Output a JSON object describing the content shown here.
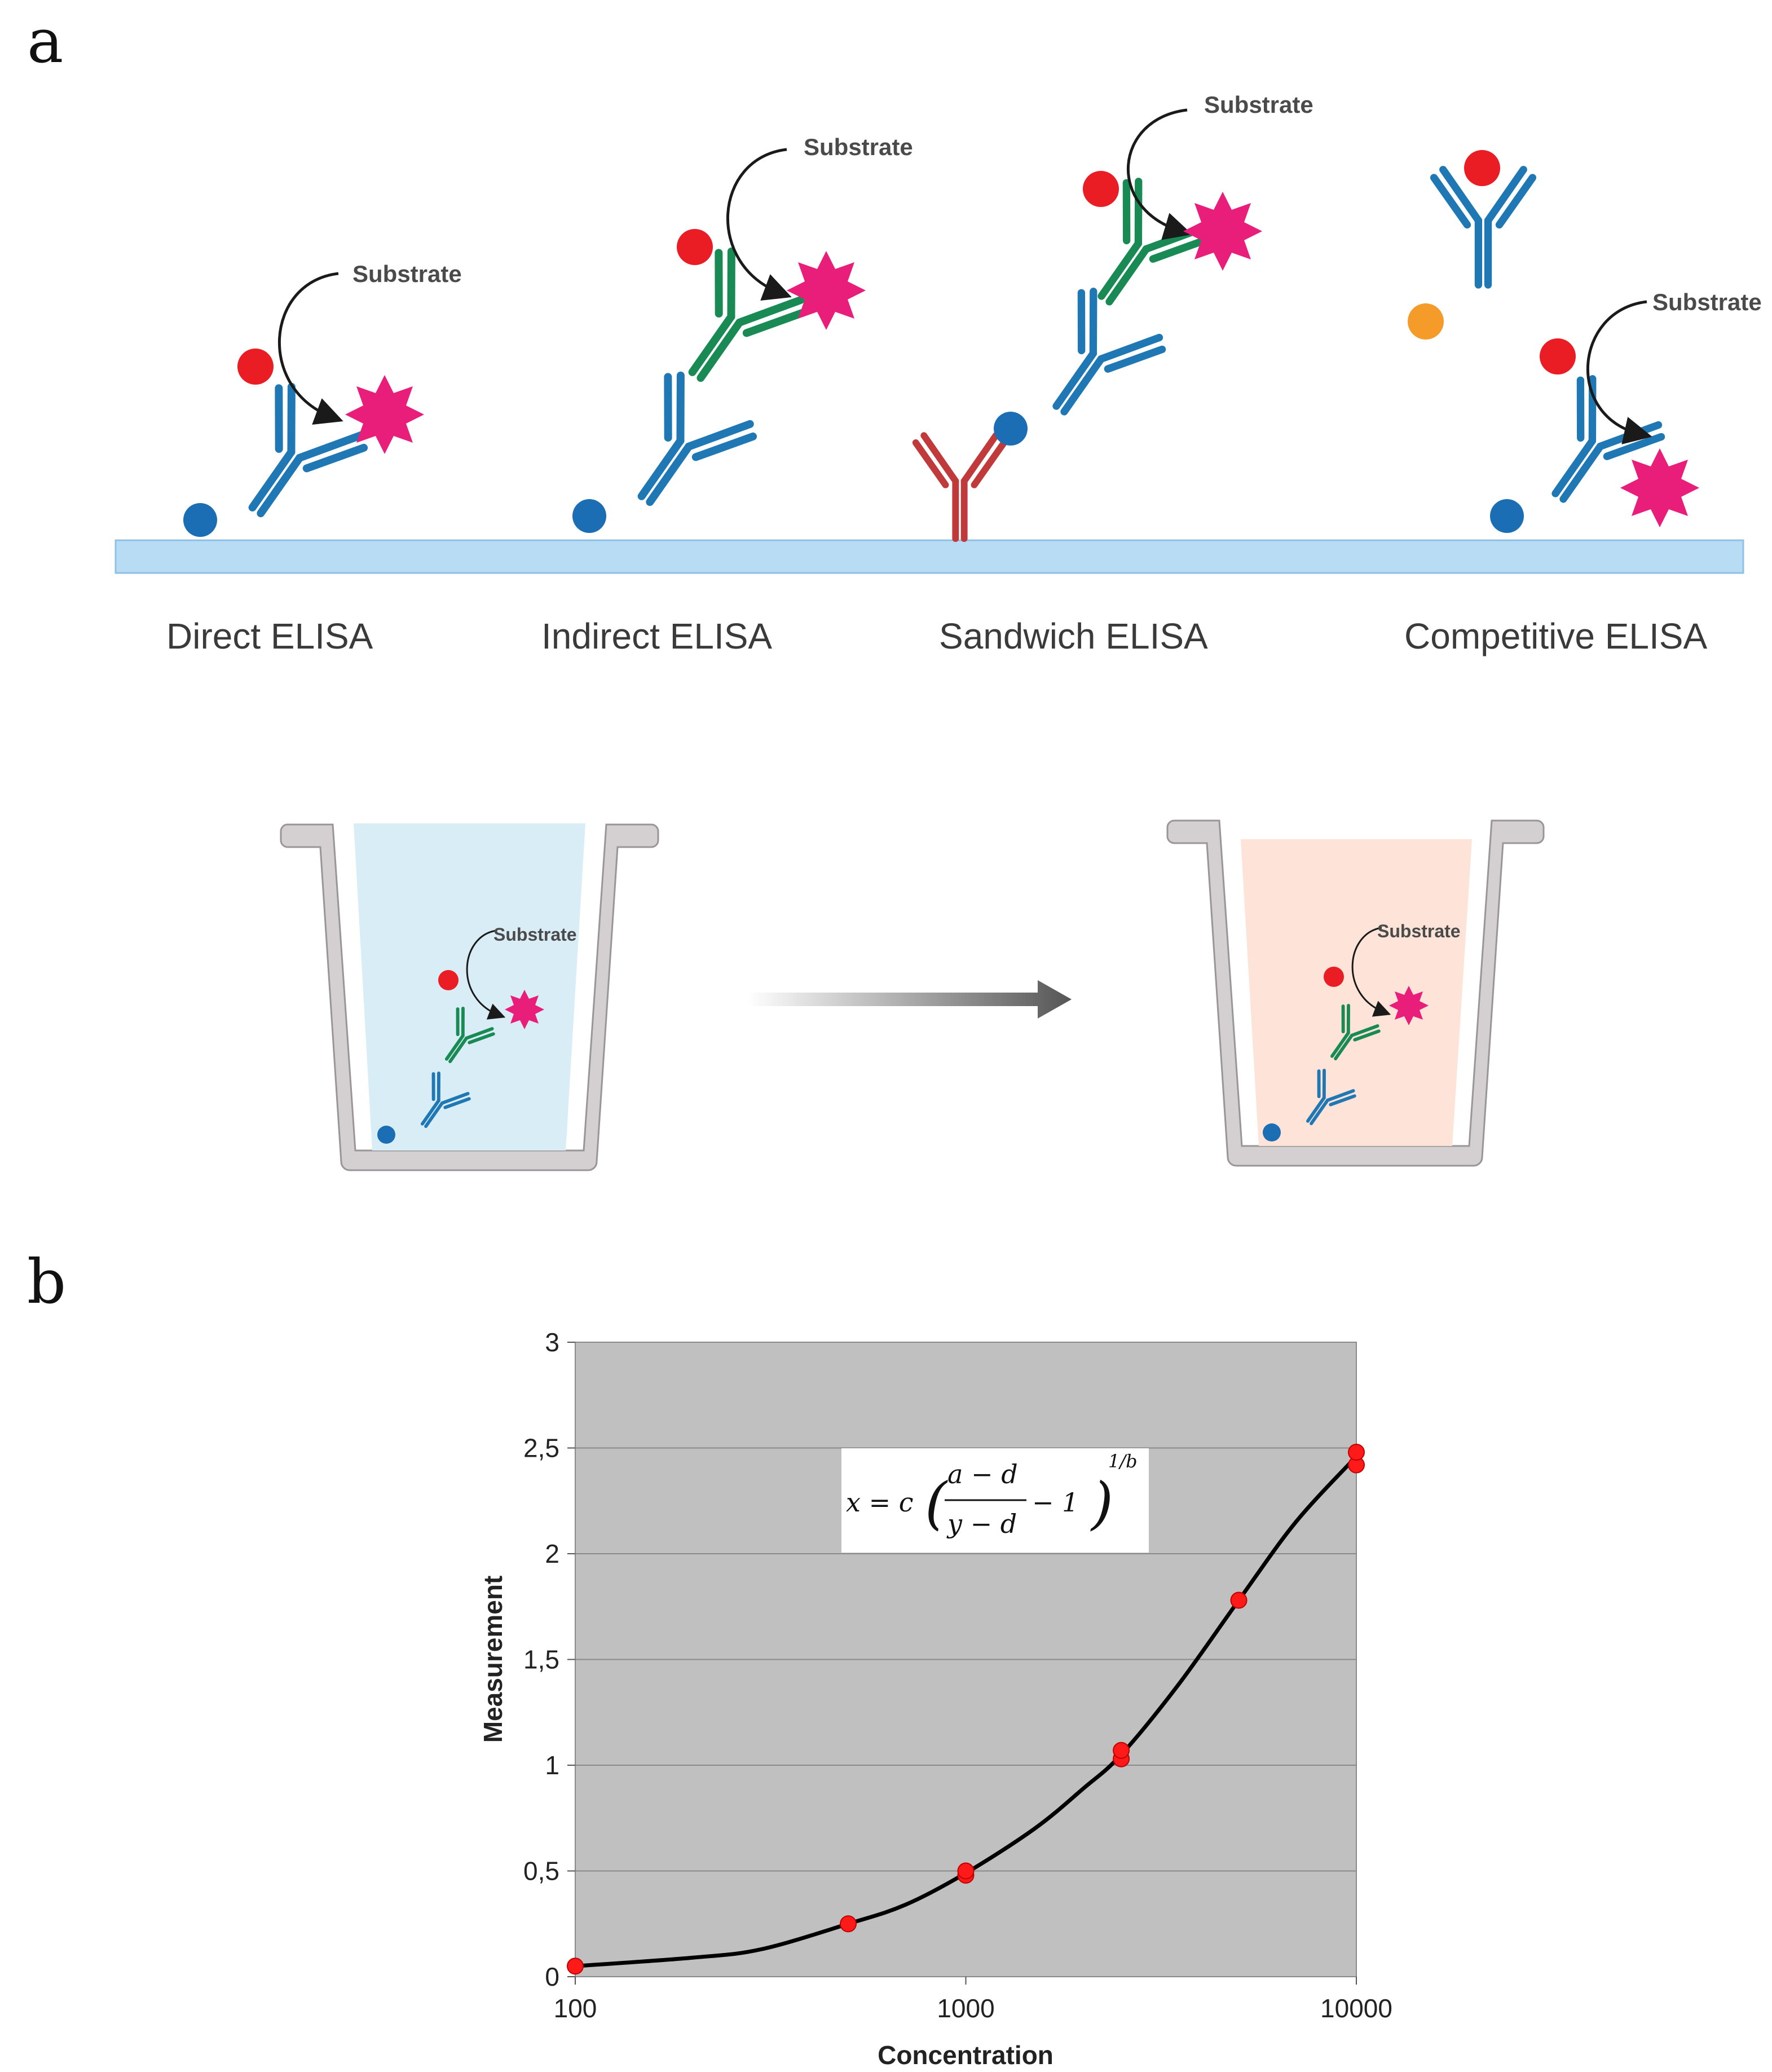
{
  "panel_a": {
    "label": "a",
    "methods": [
      "Direct ELISA",
      "Indirect ELISA",
      "Sandwich ELISA",
      "Competitive ELISA"
    ],
    "substrate_label": "Substrate",
    "well_substrate_label": "Substrate"
  },
  "colors": {
    "antigen_blue": "#1b6db4",
    "antibody_blue": "#1f78b4",
    "antibody_green": "#1a8a55",
    "capture_red": "#c0393b",
    "enzyme_red": "#ea1c24",
    "product_pink": "#e91e7a",
    "competitor_orange": "#f59b2a",
    "plate": "#b9dcf5",
    "well_before": "#d9edf7",
    "well_after": "#fde3d8"
  },
  "panel_b": {
    "label": "b",
    "formula": {
      "lhs": "x = c",
      "numerator": "a − d",
      "denominator": "y − d",
      "minus_one": "− 1",
      "exponent": "1/b"
    }
  },
  "chart_data": {
    "type": "scatter",
    "title": "",
    "xlabel": "Concentration",
    "ylabel": "Measurement",
    "xscale": "log",
    "xlim": [
      100,
      10000
    ],
    "ylim": [
      0,
      3
    ],
    "x_ticks": [
      100,
      1000,
      10000
    ],
    "x_tick_labels": [
      "100",
      "1000",
      "10000"
    ],
    "y_ticks": [
      0,
      0.5,
      1,
      1.5,
      2,
      2.5,
      3
    ],
    "y_tick_labels": [
      "0",
      "0,5",
      "1",
      "1,5",
      "2",
      "2,5",
      "3"
    ],
    "grid": "horizontal",
    "points": [
      {
        "x": 100,
        "y": 0.05
      },
      {
        "x": 500,
        "y": 0.25
      },
      {
        "x": 1000,
        "y": 0.48
      },
      {
        "x": 1000,
        "y": 0.5
      },
      {
        "x": 2500,
        "y": 1.03
      },
      {
        "x": 2500,
        "y": 1.07
      },
      {
        "x": 5000,
        "y": 1.78
      },
      {
        "x": 10000,
        "y": 2.42
      },
      {
        "x": 10000,
        "y": 2.48
      }
    ],
    "fit_curve": [
      {
        "x": 100,
        "y": 0.05
      },
      {
        "x": 200,
        "y": 0.09
      },
      {
        "x": 300,
        "y": 0.13
      },
      {
        "x": 500,
        "y": 0.25
      },
      {
        "x": 700,
        "y": 0.34
      },
      {
        "x": 1000,
        "y": 0.49
      },
      {
        "x": 1500,
        "y": 0.7
      },
      {
        "x": 2000,
        "y": 0.89
      },
      {
        "x": 2500,
        "y": 1.05
      },
      {
        "x": 3500,
        "y": 1.38
      },
      {
        "x": 5000,
        "y": 1.78
      },
      {
        "x": 7000,
        "y": 2.15
      },
      {
        "x": 10000,
        "y": 2.46
      }
    ]
  }
}
